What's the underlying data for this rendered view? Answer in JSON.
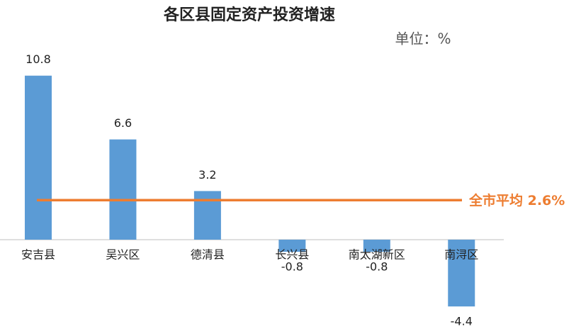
{
  "chart_data": {
    "type": "bar",
    "title": "各区县固定资产投资增速",
    "unit_label": "单位：%",
    "categories": [
      "安吉县",
      "吴兴区",
      "德清县",
      "长兴县",
      "南太湖新区",
      "南浔区"
    ],
    "values": [
      10.8,
      6.6,
      3.2,
      -0.8,
      -0.8,
      -4.4
    ],
    "color": "#5b9bd5",
    "ylim": [
      -5,
      12
    ],
    "reference_line": {
      "value": 2.6,
      "label": "全市平均 2.6%",
      "color": "#ed7d31"
    }
  }
}
